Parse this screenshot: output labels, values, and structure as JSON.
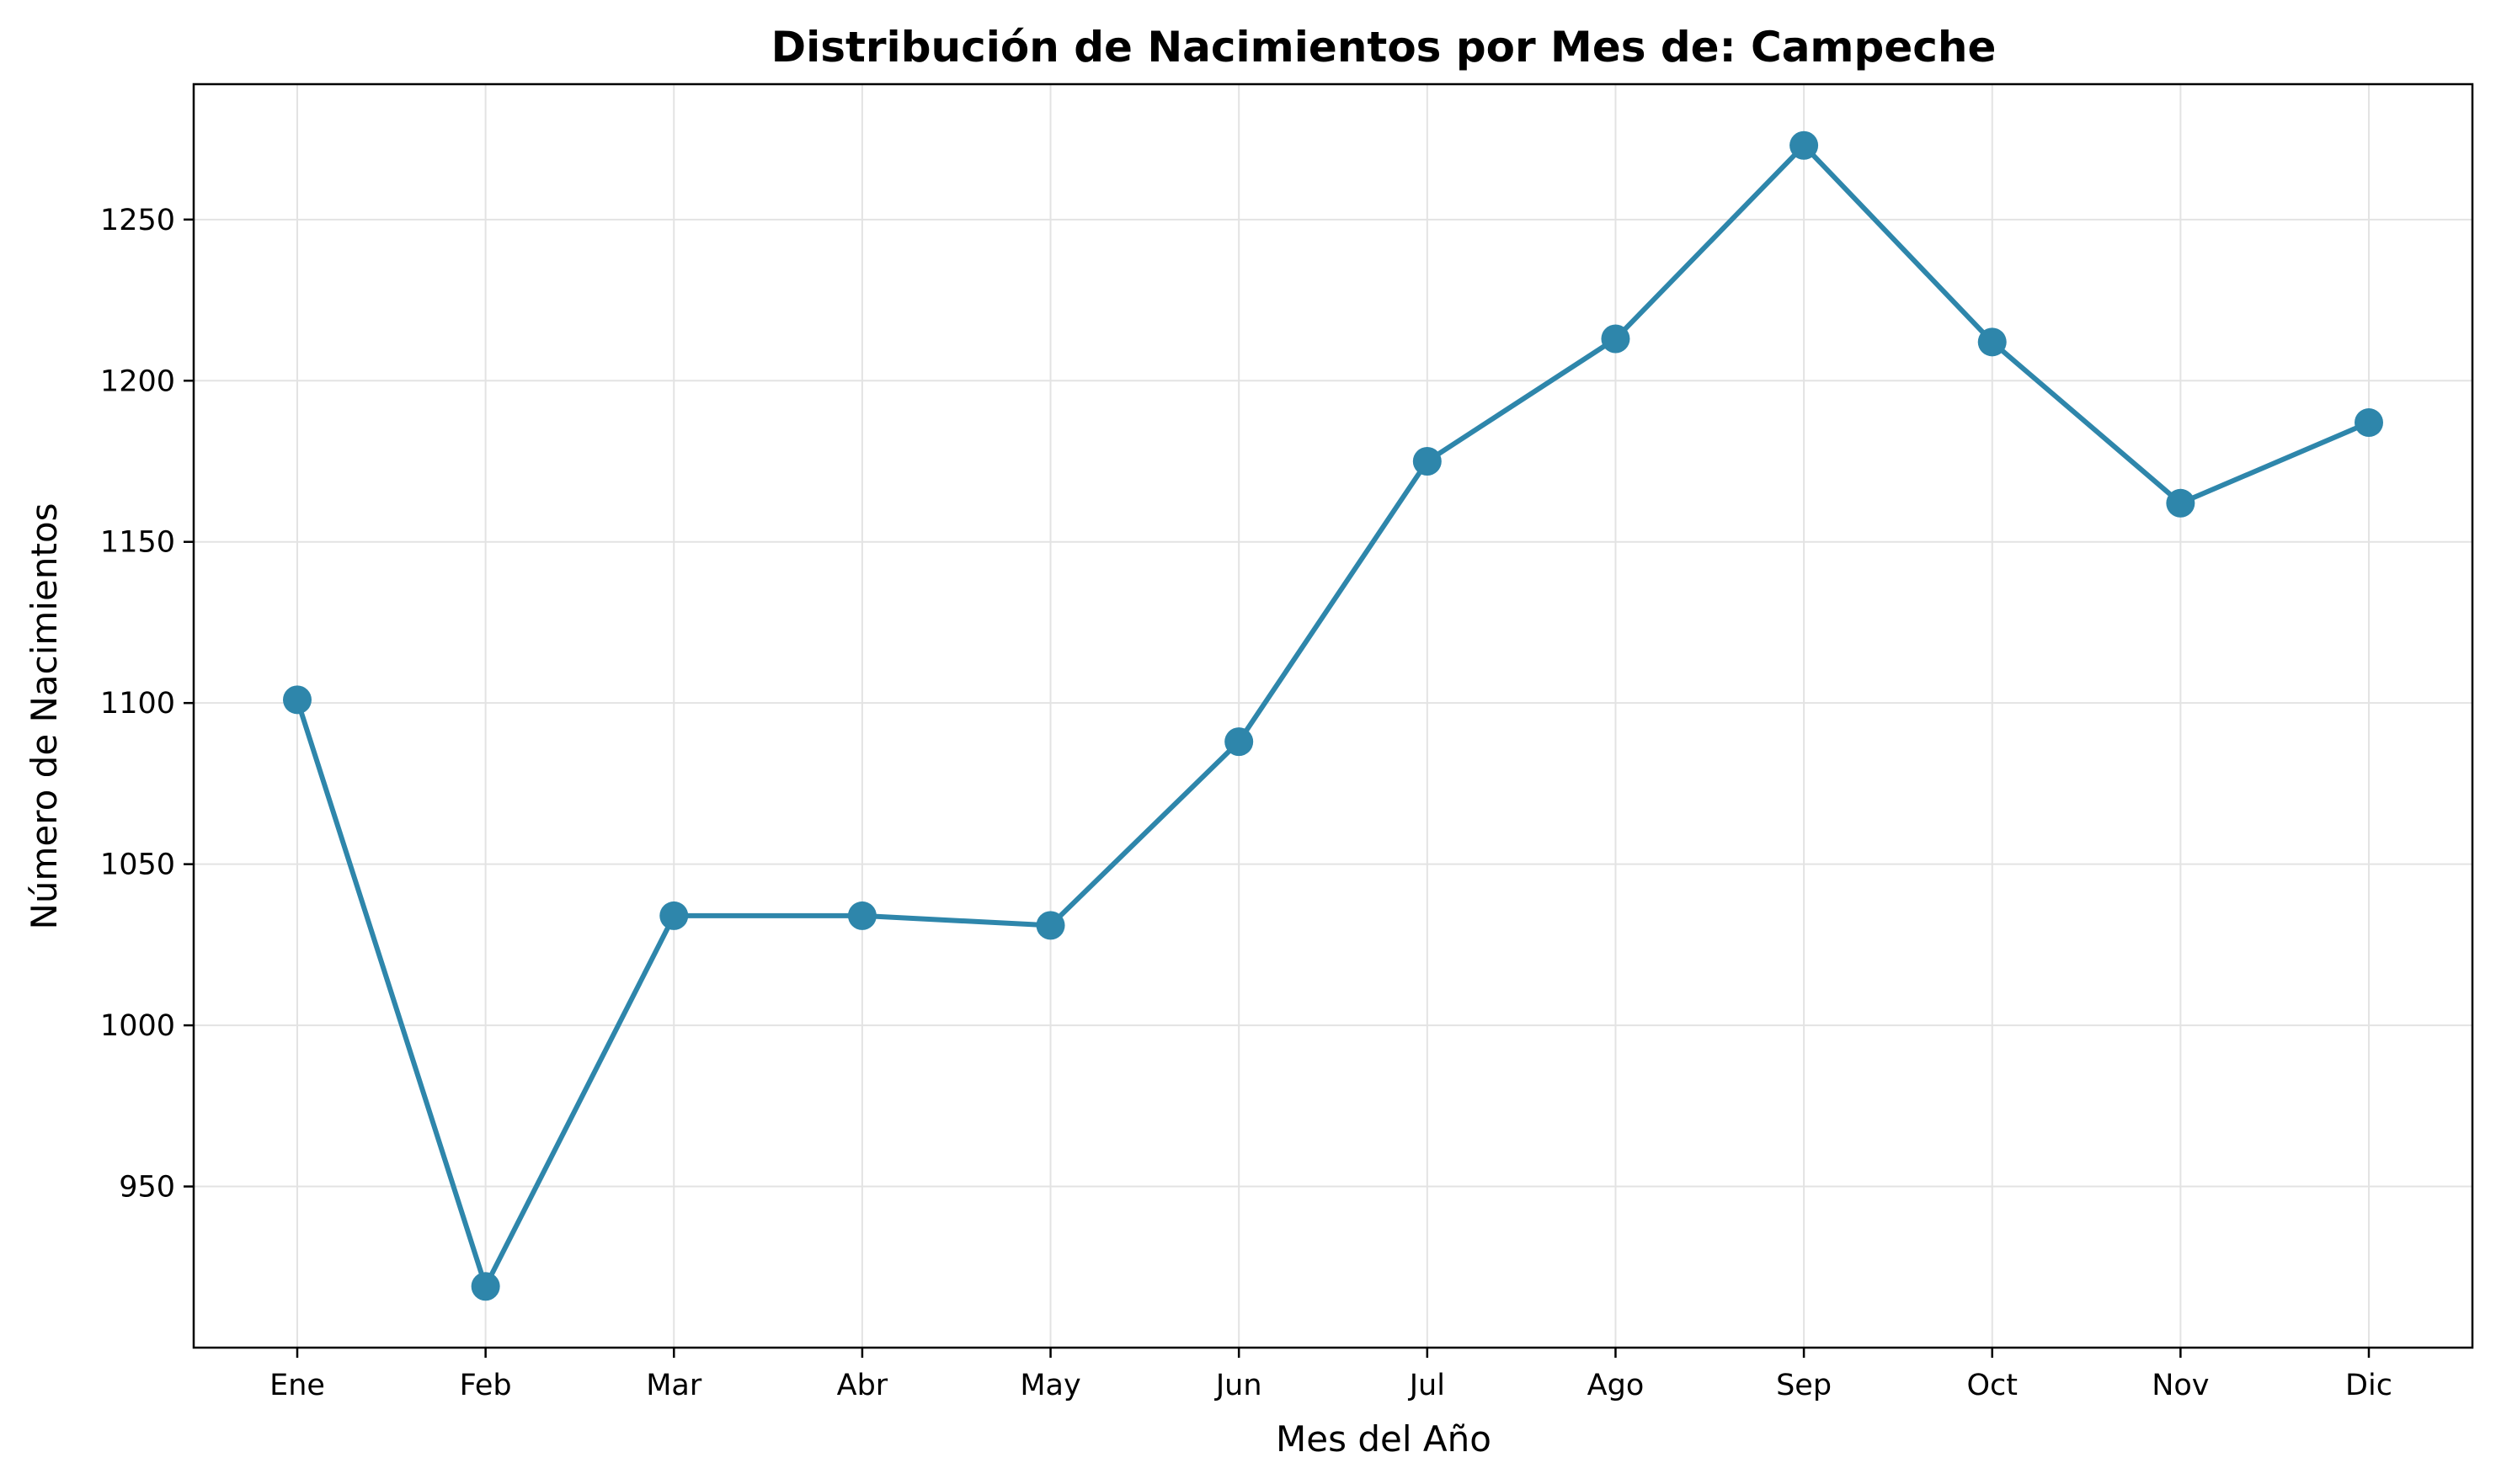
{
  "colors": {
    "series": "#2e86ab",
    "grid": "#e3e3e3"
  },
  "chart_data": {
    "type": "line",
    "title": "Distribución de Nacimientos por Mes de: Campeche",
    "xlabel": "Mes del Año",
    "ylabel": "Número de Nacimientos",
    "categories": [
      "Ene",
      "Feb",
      "Mar",
      "Abr",
      "May",
      "Jun",
      "Jul",
      "Ago",
      "Sep",
      "Oct",
      "Nov",
      "Dic"
    ],
    "series": [
      {
        "values": [
          1101,
          919,
          1034,
          1034,
          1031,
          1088,
          1175,
          1213,
          1273,
          1212,
          1162,
          1187
        ]
      }
    ],
    "ylim": [
      900,
      1292
    ],
    "yticks": [
      950,
      1000,
      1050,
      1100,
      1150,
      1200,
      1250
    ],
    "grid": true,
    "marker": "circle"
  }
}
